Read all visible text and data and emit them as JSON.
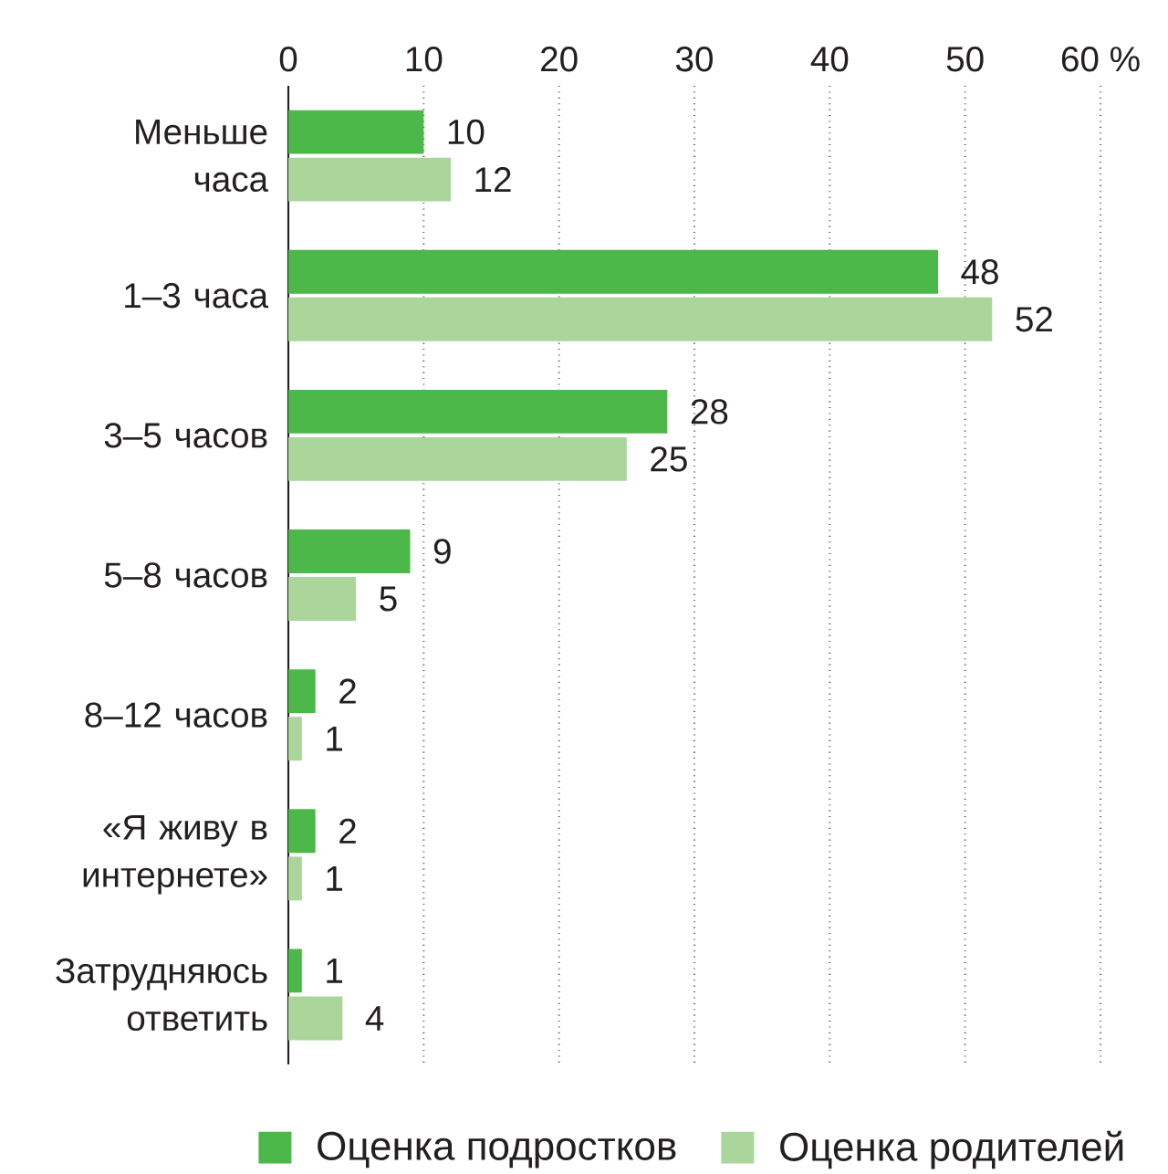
{
  "chart_data": {
    "type": "bar",
    "orientation": "horizontal",
    "categories": [
      "Меньше часа",
      "1–3 часа",
      "3–5 часов",
      "5–8 часов",
      "8–12 часов",
      "«Я живу в интернете»",
      "Затрудняюсь ответить"
    ],
    "series": [
      {
        "name": "Оценка подростков",
        "color": "#4cb84a",
        "values": [
          10,
          48,
          28,
          9,
          2,
          2,
          1
        ]
      },
      {
        "name": "Оценка родителей",
        "color": "#abd69b",
        "values": [
          12,
          52,
          25,
          5,
          1,
          1,
          4
        ]
      }
    ],
    "xlim": [
      0,
      60
    ],
    "xticks": [
      0,
      10,
      20,
      30,
      40,
      50,
      {
        "value": 60,
        "label": "60 %"
      }
    ],
    "grid": "x",
    "legend": "bottom",
    "data_labels": true
  }
}
